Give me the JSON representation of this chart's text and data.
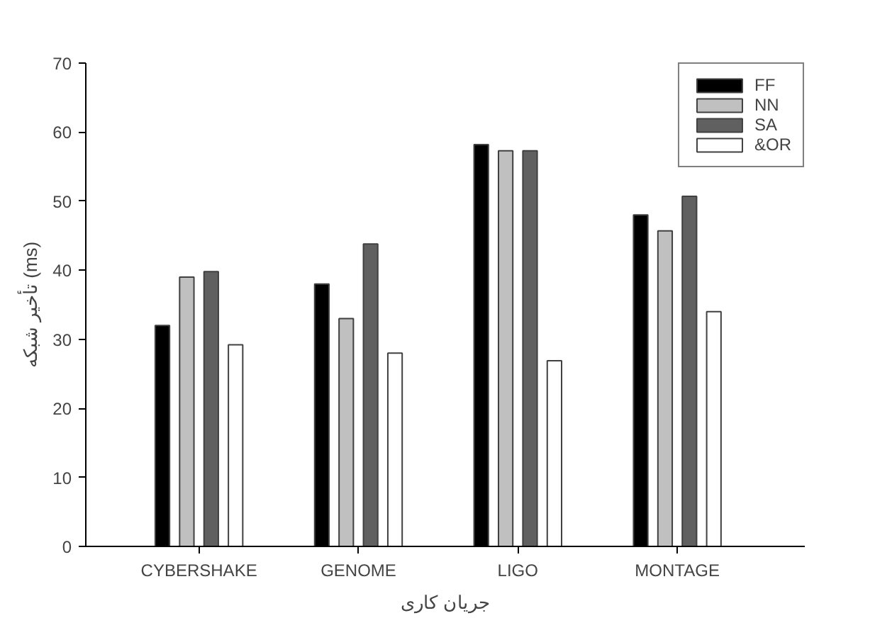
{
  "chart_data": {
    "type": "bar",
    "xlabel": "جریان کاری",
    "ylabel": "تأخیر شبکه (ms)",
    "categories": [
      "CYBERSHAKE",
      "GENOME",
      "LIGO",
      "MONTAGE"
    ],
    "series": [
      {
        "name": "FF",
        "color": "#000000",
        "values": [
          32,
          38,
          58.2,
          48
        ]
      },
      {
        "name": "NN",
        "color": "#c0c0c0",
        "values": [
          39,
          33,
          57.3,
          45.7
        ]
      },
      {
        "name": "SA",
        "color": "#606060",
        "values": [
          39.8,
          43.8,
          57.3,
          50.7
        ]
      },
      {
        "name": "&OR",
        "color": "#ffffff",
        "values": [
          29.2,
          28,
          26.9,
          34
        ]
      }
    ],
    "ylim": [
      0,
      70
    ],
    "yticks": [
      0,
      10,
      20,
      30,
      40,
      50,
      60,
      70
    ],
    "grid": false,
    "legend": "top right"
  }
}
